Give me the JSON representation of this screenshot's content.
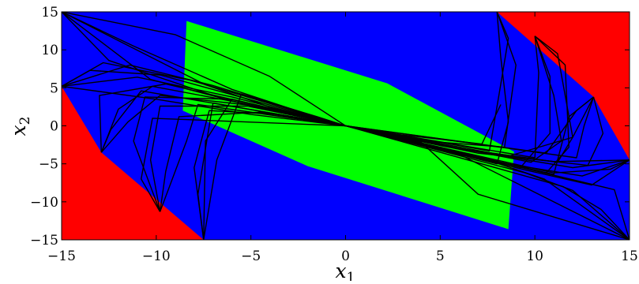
{
  "chart_data": {
    "type": "area",
    "title": "",
    "xlabel": "x",
    "xlabel_sub": "1",
    "ylabel": "x",
    "ylabel_sub": "2",
    "xlim": [
      -15,
      15
    ],
    "ylim": [
      -15,
      15
    ],
    "xticks": [
      -15,
      -10,
      -5,
      0,
      5,
      10,
      15
    ],
    "yticks": [
      -15,
      -10,
      -5,
      0,
      5,
      10,
      15
    ],
    "xtick_labels": [
      "−15",
      "−10",
      "−5",
      "0",
      "5",
      "10",
      "15"
    ],
    "ytick_labels": [
      "−15",
      "−10",
      "−5",
      "0",
      "5",
      "10",
      "15"
    ],
    "grid": false,
    "colors": {
      "background": "#ff0000",
      "outer_region": "#0000ff",
      "inner_region": "#00ff00",
      "trajectory": "#000000"
    },
    "regions": {
      "outer_region": [
        [
          -15,
          15
        ],
        [
          8,
          15
        ],
        [
          13.1,
          3.8
        ],
        [
          15,
          -4.5
        ],
        [
          15,
          -15
        ],
        [
          -7.5,
          -15
        ],
        [
          -12.9,
          -3.5
        ],
        [
          -15,
          5.2
        ]
      ],
      "inner_region": [
        [
          -8.4,
          13.8
        ],
        [
          2.2,
          5.6
        ],
        [
          8.9,
          -3.4
        ],
        [
          8.6,
          -13.6
        ],
        [
          -2.0,
          -5.3
        ],
        [
          -8.6,
          2.0
        ]
      ]
    },
    "trajectories": [
      [
        [
          -15,
          15
        ],
        [
          -10.3,
          6.1
        ],
        [
          -4.8,
          2.5
        ],
        [
          0,
          0
        ]
      ],
      [
        [
          -15,
          15
        ],
        [
          -12.5,
          8.6
        ],
        [
          -6.4,
          3.5
        ],
        [
          0,
          0
        ]
      ],
      [
        [
          -15,
          15
        ],
        [
          -7.4,
          5.4
        ],
        [
          -3.9,
          2.4
        ],
        [
          0,
          0
        ]
      ],
      [
        [
          -15,
          15
        ],
        [
          -11.2,
          10.5
        ],
        [
          -6.0,
          4.8
        ],
        [
          -2.6,
          2.0
        ],
        [
          0,
          0
        ]
      ],
      [
        [
          -15,
          15
        ],
        [
          -9.0,
          12.0
        ],
        [
          -4.0,
          6.5
        ],
        [
          0,
          0
        ]
      ],
      [
        [
          -15,
          5.2
        ],
        [
          -11.0,
          6.4
        ],
        [
          -6.0,
          3.8
        ],
        [
          0,
          0
        ]
      ],
      [
        [
          -15,
          5.2
        ],
        [
          -11.4,
          8.0
        ],
        [
          -7.0,
          5.3
        ],
        [
          0,
          0
        ]
      ],
      [
        [
          -15,
          5.2
        ],
        [
          -12.8,
          8.3
        ],
        [
          -8.2,
          6.0
        ],
        [
          0,
          0
        ]
      ],
      [
        [
          -15,
          5.2
        ],
        [
          -13.5,
          7.3
        ],
        [
          -9.8,
          6.7
        ],
        [
          0,
          0
        ]
      ],
      [
        [
          -15,
          5.2
        ],
        [
          -10.0,
          3.5
        ],
        [
          -5.0,
          1.5
        ],
        [
          0,
          0
        ]
      ],
      [
        [
          -12.9,
          -3.5
        ],
        [
          -12.0,
          2.2
        ],
        [
          -10.2,
          5.2
        ],
        [
          -5.5,
          3.0
        ],
        [
          0,
          0
        ]
      ],
      [
        [
          -12.9,
          -3.5
        ],
        [
          -11.5,
          0.5
        ],
        [
          -9.8,
          4.0
        ],
        [
          -5.0,
          2.7
        ],
        [
          0,
          0
        ]
      ],
      [
        [
          -12.9,
          -3.5
        ],
        [
          -12.4,
          -0.5
        ],
        [
          -10.8,
          4.6
        ],
        [
          0,
          0
        ]
      ],
      [
        [
          -12.9,
          -3.5
        ],
        [
          -13.0,
          4.0
        ],
        [
          -9.5,
          5.5
        ],
        [
          0,
          0
        ]
      ],
      [
        [
          -9.8,
          -11.3
        ],
        [
          -11.2,
          -2.0
        ],
        [
          -10.6,
          3.8
        ],
        [
          -6.0,
          3.5
        ],
        [
          0,
          0
        ]
      ],
      [
        [
          -9.8,
          -11.3
        ],
        [
          -10.3,
          -4.5
        ],
        [
          -9.8,
          2.6
        ],
        [
          -5.2,
          2.6
        ],
        [
          0,
          0
        ]
      ],
      [
        [
          -9.8,
          -11.3
        ],
        [
          -9.5,
          -6.0
        ],
        [
          -8.8,
          1.2
        ],
        [
          -4.5,
          1.8
        ],
        [
          0,
          0
        ]
      ],
      [
        [
          -9.8,
          -11.3
        ],
        [
          -10.8,
          -7.0
        ],
        [
          -10.2,
          1.0
        ],
        [
          0,
          0
        ]
      ],
      [
        [
          -9.8,
          -11.3
        ],
        [
          -8.4,
          -2.0
        ],
        [
          -7.8,
          2.8
        ],
        [
          0,
          0
        ]
      ],
      [
        [
          -7.5,
          -15
        ],
        [
          -8.0,
          -5.5
        ],
        [
          -7.2,
          2.0
        ],
        [
          -3.5,
          1.5
        ],
        [
          0,
          0
        ]
      ],
      [
        [
          -7.5,
          -15
        ],
        [
          -7.8,
          -9.0
        ],
        [
          -7.0,
          3.0
        ],
        [
          0,
          0
        ]
      ],
      [
        [
          -7.5,
          -15
        ],
        [
          -7.4,
          -2.0
        ],
        [
          -6.0,
          3.5
        ],
        [
          0,
          0
        ]
      ],
      [
        [
          -7.5,
          -15
        ],
        [
          -6.8,
          -4.5
        ],
        [
          -5.5,
          4.2
        ],
        [
          -1.5,
          1.2
        ],
        [
          0,
          0
        ]
      ],
      [
        [
          8,
          15
        ],
        [
          9.0,
          8.0
        ],
        [
          8.4,
          -2.8
        ],
        [
          4.2,
          -2.0
        ],
        [
          0,
          0
        ]
      ],
      [
        [
          8,
          15
        ],
        [
          8.6,
          11.5
        ],
        [
          8.1,
          4.0
        ],
        [
          7.6,
          -3.3
        ],
        [
          0,
          0
        ]
      ],
      [
        [
          8,
          15
        ],
        [
          8.2,
          9.0
        ],
        [
          8.6,
          0.5
        ],
        [
          8.0,
          -5.0
        ],
        [
          0,
          0
        ]
      ],
      [
        [
          8.2,
          2.8
        ],
        [
          7.2,
          -2.4
        ],
        [
          3.0,
          -1.2
        ],
        [
          0,
          0
        ]
      ],
      [
        [
          10.0,
          11.8
        ],
        [
          11.0,
          4.0
        ],
        [
          11.4,
          -2.0
        ],
        [
          9.8,
          -4.8
        ],
        [
          0,
          0
        ]
      ],
      [
        [
          10.0,
          11.8
        ],
        [
          10.8,
          6.5
        ],
        [
          10.8,
          -1.0
        ],
        [
          9.2,
          -5.6
        ],
        [
          0,
          0
        ]
      ],
      [
        [
          10.0,
          11.8
        ],
        [
          10.2,
          7.0
        ],
        [
          10.0,
          -4.2
        ],
        [
          0,
          0
        ]
      ],
      [
        [
          10.0,
          11.8
        ],
        [
          11.6,
          8.0
        ],
        [
          11.8,
          -2.8
        ],
        [
          10.6,
          -6.2
        ],
        [
          0,
          0
        ]
      ],
      [
        [
          10.0,
          11.8
        ],
        [
          11.2,
          9.5
        ],
        [
          12.0,
          -1.5
        ],
        [
          8.6,
          -4.0
        ],
        [
          0,
          0
        ]
      ],
      [
        [
          13.1,
          3.8
        ],
        [
          12.0,
          -1.5
        ],
        [
          11.2,
          -4.8
        ],
        [
          6.0,
          -3.0
        ],
        [
          0,
          0
        ]
      ],
      [
        [
          13.1,
          3.8
        ],
        [
          12.6,
          0.0
        ],
        [
          12.2,
          -4.2
        ],
        [
          0,
          0
        ]
      ],
      [
        [
          13.1,
          3.8
        ],
        [
          11.8,
          1.2
        ],
        [
          11.0,
          -6.4
        ],
        [
          0,
          0
        ]
      ],
      [
        [
          13.1,
          3.8
        ],
        [
          13.6,
          -1.0
        ],
        [
          12.8,
          -5.2
        ],
        [
          7.0,
          -3.6
        ],
        [
          0,
          0
        ]
      ],
      [
        [
          13.1,
          3.8
        ],
        [
          12.2,
          2.0
        ],
        [
          10.6,
          -3.6
        ],
        [
          0,
          0
        ]
      ],
      [
        [
          15,
          -4.5
        ],
        [
          11.0,
          -4.7
        ],
        [
          6.0,
          -3.0
        ],
        [
          0,
          0
        ]
      ],
      [
        [
          15,
          -4.5
        ],
        [
          12.5,
          -6.6
        ],
        [
          8.0,
          -4.8
        ],
        [
          0,
          0
        ]
      ],
      [
        [
          15,
          -4.5
        ],
        [
          13.0,
          -7.8
        ],
        [
          9.5,
          -5.8
        ],
        [
          0,
          0
        ]
      ],
      [
        [
          15,
          -4.5
        ],
        [
          14.0,
          -5.7
        ],
        [
          11.0,
          -6.2
        ],
        [
          0,
          0
        ]
      ],
      [
        [
          15,
          -4.5
        ],
        [
          12.0,
          -5.5
        ],
        [
          5.0,
          -2.6
        ],
        [
          0,
          0
        ]
      ],
      [
        [
          15,
          -15
        ],
        [
          12.0,
          -8.5
        ],
        [
          9.5,
          -6.2
        ],
        [
          0,
          0
        ]
      ],
      [
        [
          15,
          -15
        ],
        [
          10.5,
          -7.0
        ],
        [
          7.5,
          -4.5
        ],
        [
          0,
          0
        ]
      ],
      [
        [
          15,
          -15
        ],
        [
          13.5,
          -11.0
        ],
        [
          11.5,
          -8.0
        ],
        [
          0,
          0
        ]
      ],
      [
        [
          15,
          -15
        ],
        [
          7.0,
          -9.0
        ],
        [
          4.0,
          -2.2
        ],
        [
          0,
          0
        ]
      ],
      [
        [
          15,
          -15
        ],
        [
          14.2,
          -8.4
        ],
        [
          12.2,
          -7.2
        ],
        [
          0,
          0
        ]
      ],
      [
        [
          15,
          -15
        ],
        [
          9.0,
          -7.5
        ],
        [
          6.2,
          -4.0
        ],
        [
          0,
          0
        ]
      ]
    ]
  }
}
